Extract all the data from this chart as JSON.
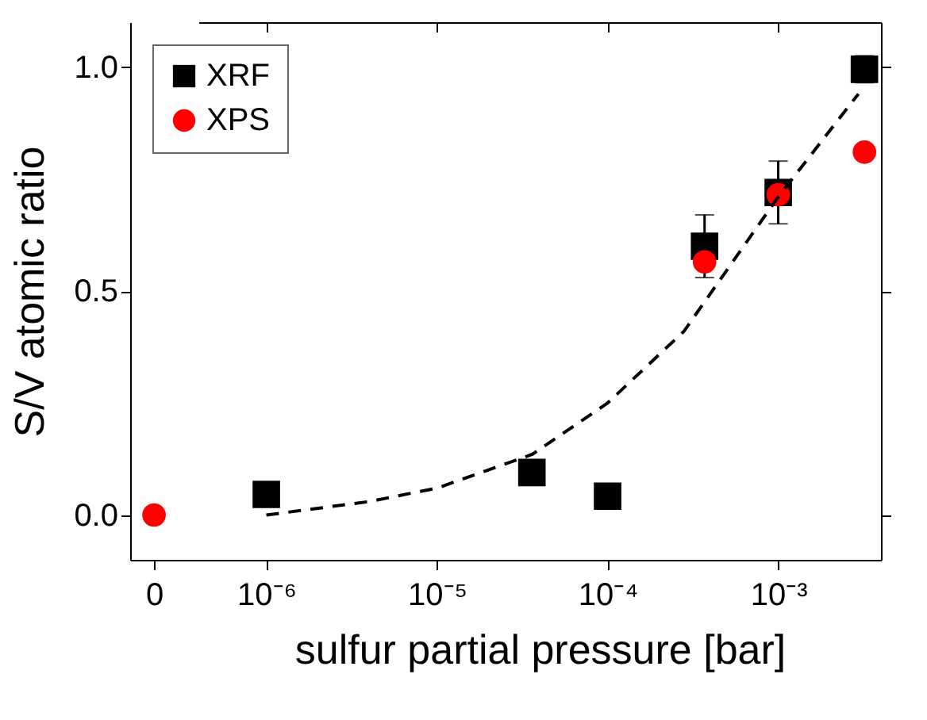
{
  "chart_data": [
    {
      "type": "scatter",
      "ylabel": "S/V atomic ratio",
      "categories": [
        "0"
      ],
      "ylim": [
        -0.1,
        1.1
      ],
      "yticks": [
        {
          "value": 0,
          "label": "0.0"
        },
        {
          "value": 0.5,
          "label": "0.5"
        },
        {
          "value": 1,
          "label": "1.0"
        }
      ],
      "marker": "circle",
      "series": [
        {
          "color": "#ff0000",
          "values": [
            0
          ]
        }
      ]
    },
    {
      "type": "scatter",
      "xlabel": "sulfur partial pressure [bar]",
      "xlim": [
        4e-07,
        0.004
      ],
      "xticks": [
        {
          "value": 1e-06,
          "label": "10⁻⁶"
        },
        {
          "value": 1e-05,
          "label": "10⁻⁵"
        },
        {
          "value": 0.0001,
          "label": "10⁻⁴"
        },
        {
          "value": 0.001,
          "label": "10⁻³"
        }
      ],
      "ylim": [
        -0.1,
        1.1
      ],
      "log": "x",
      "legend": "top left",
      "tick_labels": "x",
      "yticks": [
        0,
        0.5,
        1
      ],
      "series": [
        {
          "name": "XRF",
          "color": "#000000",
          "marker": "square",
          "x": [
            1e-06,
            3.6e-05,
            0.0001,
            0.00037,
            0.001,
            0.0032
          ],
          "values": [
            0.046,
            0.095,
            0.042,
            0.6,
            0.72,
            0.995
          ],
          "errors": [
            null,
            null,
            null,
            0.07,
            0.07,
            0.03
          ]
        },
        {
          "name": "XPS",
          "color": "#ff0000",
          "marker": "circle",
          "x": [
            0.00037,
            0.001,
            0.0032
          ],
          "values": [
            0.565,
            0.715,
            0.81
          ]
        },
        {
          "type": "line",
          "color": "#000000",
          "line_style": "dashed",
          "marker": "none",
          "x": [
            1e-06,
            4e-06,
            1e-05,
            3.6e-05,
            0.0001,
            0.00028,
            0.001,
            0.00295
          ],
          "values": [
            0,
            0.03,
            0.06,
            0.135,
            0.25,
            0.41,
            0.71,
            0.94
          ]
        }
      ]
    }
  ]
}
